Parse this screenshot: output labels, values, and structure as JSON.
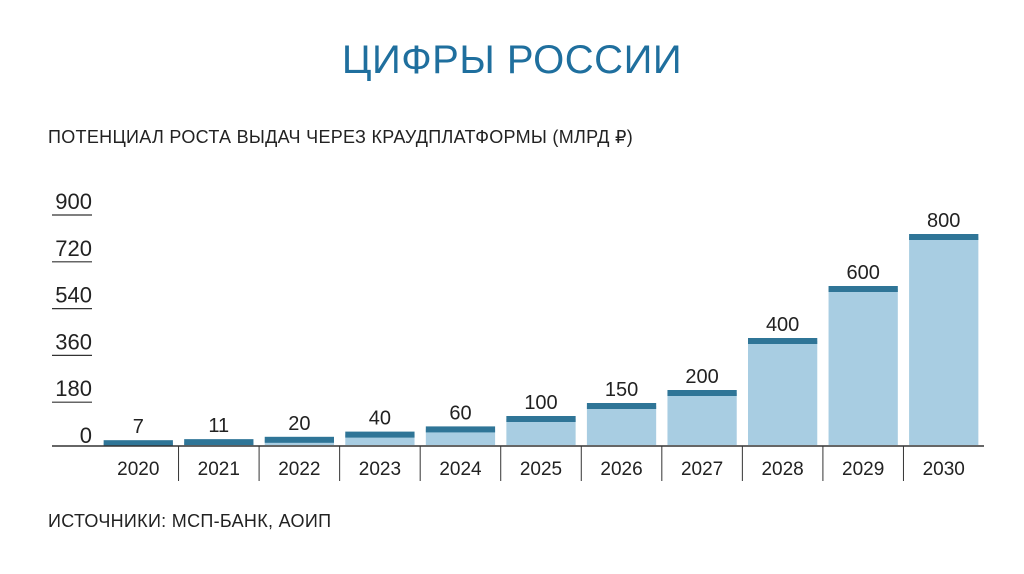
{
  "slide": {
    "title": "ЦИФРЫ РОССИИ",
    "subtitle": "ПОТЕНЦИАЛ РОСТА ВЫДАЧ ЧЕРЕЗ КРАУДПЛАТФОРМЫ (МЛРД ₽)",
    "source": "ИСТОЧНИКИ: МСП-БАНК, АОИП"
  },
  "colors": {
    "title": "#1f6f9e",
    "bar_fill": "#a8cde2",
    "bar_cap": "#2f7597",
    "axis": "#333333",
    "text": "#222222"
  },
  "chart_data": {
    "type": "bar",
    "title": "ПОТЕНЦИАЛ РОСТА ВЫДАЧ ЧЕРЕЗ КРАУДПЛАТФОРМЫ (МЛРД ₽)",
    "categories": [
      "2020",
      "2021",
      "2022",
      "2023",
      "2024",
      "2025",
      "2026",
      "2027",
      "2028",
      "2029",
      "2030"
    ],
    "values": [
      7,
      11,
      20,
      40,
      60,
      100,
      150,
      200,
      400,
      600,
      800
    ],
    "data_labels": [
      "7",
      "11",
      "20",
      "40",
      "60",
      "100",
      "150",
      "200",
      "400",
      "600",
      "800"
    ],
    "yticks": [
      "0",
      "180",
      "360",
      "540",
      "720",
      "900"
    ],
    "ytick_values": [
      0,
      180,
      360,
      540,
      720,
      900
    ],
    "ylim": [
      0,
      900
    ],
    "xlabel": "",
    "ylabel": "",
    "grid": false,
    "legend": "none"
  }
}
